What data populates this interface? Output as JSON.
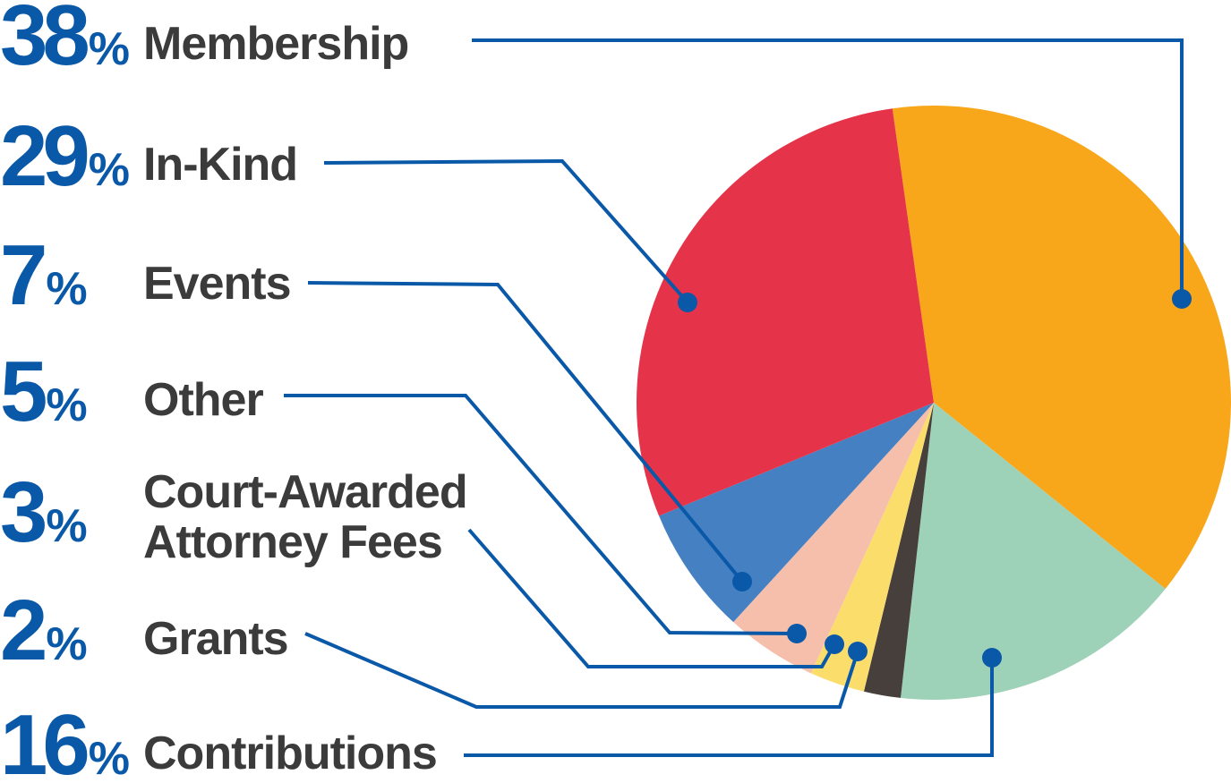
{
  "chart_data": {
    "type": "pie",
    "title": "",
    "slices": [
      {
        "label": "Membership",
        "percent_label": "38",
        "value": 38,
        "color": "#F9A71A"
      },
      {
        "label": "In-Kind",
        "percent_label": "29",
        "value": 29,
        "color": "#E5334A"
      },
      {
        "label": "Events",
        "percent_label": "7",
        "value": 7,
        "color": "#4480C2"
      },
      {
        "label": "Other",
        "percent_label": "5",
        "value": 5,
        "color": "#F6BFAC"
      },
      {
        "label": "Court-Awarded",
        "label_line2": "Attorney Fees",
        "percent_label": "3",
        "value": 3,
        "color": "#FBDD6C"
      },
      {
        "label": "Grants",
        "percent_label": "2",
        "value": 2,
        "color": "#463F3C"
      },
      {
        "label": "Contributions",
        "percent_label": "16",
        "value": 16,
        "color": "#9ED2B8"
      }
    ],
    "percent_sign": "%",
    "colors": {
      "number": "#0A58A8",
      "label": "#3B3B3B",
      "leader": "#0A58A8",
      "background": "#FFFFFF"
    }
  }
}
